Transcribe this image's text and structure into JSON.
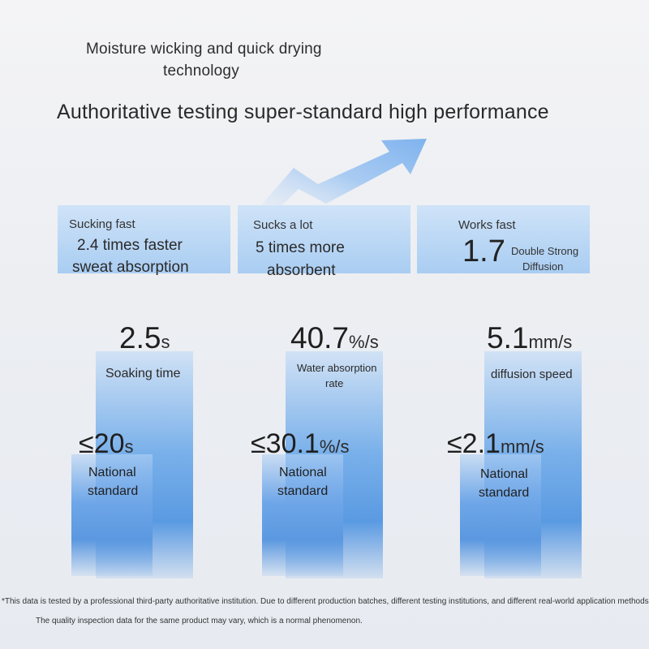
{
  "header": {
    "line1": "Moisture wicking and quick drying",
    "line2": "technology",
    "headline": "Authoritative testing super-standard high performance"
  },
  "cards": [
    {
      "title": "Sucking fast",
      "line1": "2.4 times faster",
      "line2": "sweat absorption"
    },
    {
      "title": "Sucks a lot",
      "line1": "5 times more",
      "line2": "absorbent"
    },
    {
      "title": "Works fast",
      "big": "1.7",
      "small1": "Double Strong",
      "small2": "Diffusion"
    }
  ],
  "metrics": [
    {
      "value": "2.5",
      "unit": "s",
      "label": "Soaking time",
      "national_value": "≤20",
      "national_unit": "s",
      "national_label1": "National",
      "national_label2": "standard"
    },
    {
      "value": "40.7",
      "unit": "%/s",
      "label1": "Water absorption",
      "label2": "rate",
      "national_value": "≤30.1",
      "national_unit": "%/s",
      "national_label1": "National",
      "national_label2": "standard"
    },
    {
      "value": "5.1",
      "unit": "mm/s",
      "label": "diffusion speed",
      "national_value": "≤2.1",
      "national_unit": "mm/s",
      "national_label1": "National",
      "national_label2": "standard"
    }
  ],
  "footnote": {
    "line1": "*This data is tested by a professional third-party authoritative institution. Due to different production batches, different testing institutions, and different real-world application methods,",
    "line2": "The quality inspection data for the same product may vary, which is a normal phenomenon."
  },
  "colors": {
    "card": "#bcd8f5",
    "bar": "#6ea6e8",
    "arrow": "#8cbcf0"
  },
  "icons": {
    "arrow": "upward-trend-arrow-icon"
  }
}
